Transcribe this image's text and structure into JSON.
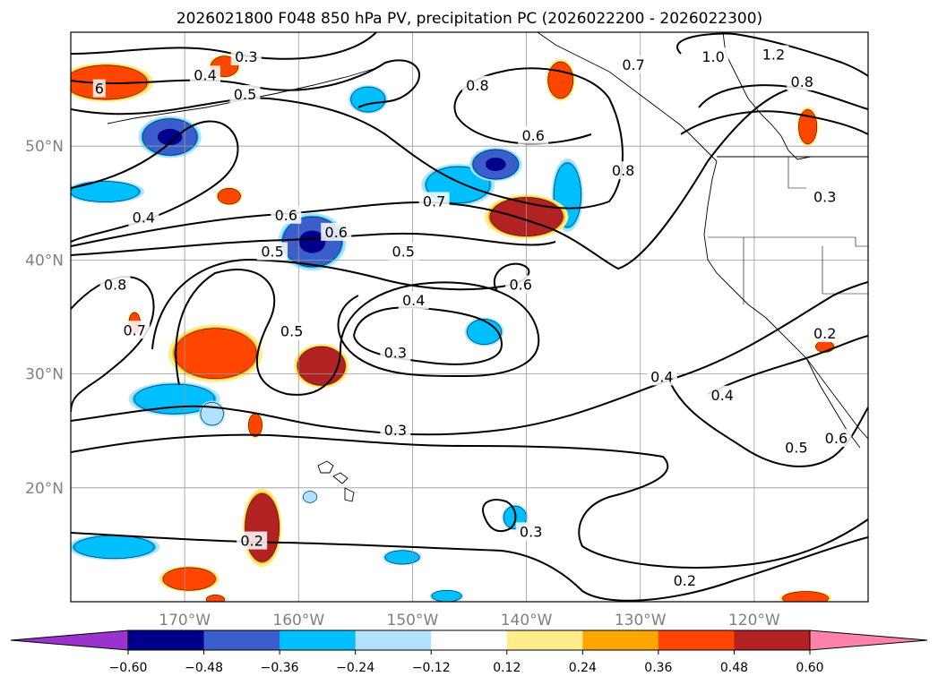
{
  "chart_data": {
    "type": "contour-map",
    "title": "2026021800 F048 850 hPa PV, precipitation PC (2026022200 - 2026022300)",
    "lon_range": [
      -180,
      -110
    ],
    "lat_range": [
      10,
      60
    ],
    "x_ticks": [
      {
        "lon": -170,
        "label": "170°W"
      },
      {
        "lon": -160,
        "label": "160°W"
      },
      {
        "lon": -150,
        "label": "150°W"
      },
      {
        "lon": -140,
        "label": "140°W"
      },
      {
        "lon": -130,
        "label": "130°W"
      },
      {
        "lon": -120,
        "label": "120°W"
      }
    ],
    "y_ticks": [
      {
        "lat": 20,
        "label": "20°N"
      },
      {
        "lat": 30,
        "label": "30°N"
      },
      {
        "lat": 40,
        "label": "40°N"
      },
      {
        "lat": 50,
        "label": "50°N"
      }
    ],
    "contour_labels": [
      {
        "text": "0.3",
        "lon": -164.6,
        "lat": 57.8
      },
      {
        "text": "0.4",
        "lon": -168.2,
        "lat": 56.2
      },
      {
        "text": "0.5",
        "lon": -164.7,
        "lat": 54.5
      },
      {
        "text": "0.8",
        "lon": -144.3,
        "lat": 55.3
      },
      {
        "text": "0.6",
        "lon": -139.4,
        "lat": 50.9
      },
      {
        "text": "0.8",
        "lon": -131.5,
        "lat": 47.8
      },
      {
        "text": "0.7",
        "lon": -130.6,
        "lat": 57.1
      },
      {
        "text": "1.0",
        "lon": -123.6,
        "lat": 57.8
      },
      {
        "text": "1.2",
        "lon": -118.3,
        "lat": 58.0
      },
      {
        "text": "0.8",
        "lon": -115.8,
        "lat": 55.6
      },
      {
        "text": "0.3",
        "lon": -113.8,
        "lat": 45.5
      },
      {
        "text": "0.4",
        "lon": -173.6,
        "lat": 43.7
      },
      {
        "text": "0.6",
        "lon": -161.1,
        "lat": 43.9
      },
      {
        "text": "0.7",
        "lon": -148.1,
        "lat": 45.1
      },
      {
        "text": "0.6",
        "lon": -156.7,
        "lat": 42.4
      },
      {
        "text": "0.5",
        "lon": -162.3,
        "lat": 40.7
      },
      {
        "text": "0.5",
        "lon": -150.8,
        "lat": 40.7
      },
      {
        "text": "0.8",
        "lon": -176.1,
        "lat": 37.8
      },
      {
        "text": "0.6",
        "lon": -140.5,
        "lat": 37.8
      },
      {
        "text": "0.4",
        "lon": -149.9,
        "lat": 36.4
      },
      {
        "text": "0.5",
        "lon": -160.6,
        "lat": 33.7
      },
      {
        "text": "0.7",
        "lon": -174.4,
        "lat": 33.8
      },
      {
        "text": "0.3",
        "lon": -151.5,
        "lat": 31.8
      },
      {
        "text": "0.4",
        "lon": -128.1,
        "lat": 29.7
      },
      {
        "text": "0.4",
        "lon": -122.8,
        "lat": 28.1
      },
      {
        "text": "0.3",
        "lon": -151.5,
        "lat": 25.0
      },
      {
        "text": "0.5",
        "lon": -116.3,
        "lat": 23.5
      },
      {
        "text": "0.6",
        "lon": -112.8,
        "lat": 24.3
      },
      {
        "text": "0.2",
        "lon": -113.8,
        "lat": 33.5
      },
      {
        "text": "0.3",
        "lon": -139.6,
        "lat": 16.1
      },
      {
        "text": "0.2",
        "lon": -164.1,
        "lat": 15.3
      },
      {
        "text": "0.2",
        "lon": -126.1,
        "lat": 11.8
      },
      {
        "text": "6",
        "lon": -177.5,
        "lat": 55.0
      }
    ],
    "colorbar": {
      "levels": [
        -0.6,
        -0.48,
        -0.36,
        -0.24,
        -0.12,
        0.12,
        0.24,
        0.36,
        0.48,
        0.6
      ],
      "tick_labels": [
        "−0.60",
        "−0.48",
        "−0.36",
        "−0.24",
        "−0.12",
        "0.12",
        "0.24",
        "0.36",
        "0.48",
        "0.60"
      ],
      "colors": [
        "#9a32cd",
        "#00008b",
        "#3a5fcd",
        "#00bfff",
        "#b2e2ff",
        "#ffffff",
        "#ffec8b",
        "#ffa500",
        "#ff4500",
        "#b22222",
        "#ff82ab"
      ],
      "extend": "both"
    },
    "precip_neg_areas": [
      {
        "lon": -171.3,
        "lat": 50.8,
        "rx": 2.4,
        "ry": 1.6,
        "level": -0.48
      },
      {
        "lon": -177.0,
        "lat": 46.0,
        "rx": 3.0,
        "ry": 0.9,
        "level": -0.36
      },
      {
        "lon": -158.8,
        "lat": 41.6,
        "rx": 2.6,
        "ry": 2.2,
        "level": -0.48
      },
      {
        "lon": -146.0,
        "lat": 46.6,
        "rx": 2.8,
        "ry": 1.6,
        "level": -0.36
      },
      {
        "lon": -142.7,
        "lat": 48.4,
        "rx": 2.0,
        "ry": 1.3,
        "level": -0.48
      },
      {
        "lon": -136.4,
        "lat": 45.7,
        "rx": 1.2,
        "ry": 2.8,
        "level": -0.36
      },
      {
        "lon": -153.9,
        "lat": 54.1,
        "rx": 1.5,
        "ry": 1.1,
        "level": -0.36
      },
      {
        "lon": -170.9,
        "lat": 27.8,
        "rx": 3.5,
        "ry": 1.3,
        "level": -0.36
      },
      {
        "lon": -143.7,
        "lat": 33.7,
        "rx": 1.5,
        "ry": 1.1,
        "level": -0.36
      },
      {
        "lon": -176.2,
        "lat": 14.8,
        "rx": 3.5,
        "ry": 1.0,
        "level": -0.36
      },
      {
        "lon": -141.0,
        "lat": 17.4,
        "rx": 1.0,
        "ry": 1.0,
        "level": -0.36
      },
      {
        "lon": -150.9,
        "lat": 13.9,
        "rx": 1.5,
        "ry": 0.6,
        "level": -0.36
      },
      {
        "lon": -147.0,
        "lat": 10.5,
        "rx": 1.3,
        "ry": 0.5,
        "level": -0.36
      },
      {
        "lon": -167.6,
        "lat": 26.5,
        "rx": 1.0,
        "ry": 1.0,
        "level": -0.24
      },
      {
        "lon": -159.0,
        "lat": 19.2,
        "rx": 0.6,
        "ry": 0.5,
        "level": -0.24
      }
    ],
    "precip_pos_areas": [
      {
        "lon": -176.9,
        "lat": 55.6,
        "rx": 3.6,
        "ry": 1.5,
        "level": 0.36
      },
      {
        "lon": -166.5,
        "lat": 57.0,
        "rx": 1.2,
        "ry": 0.9,
        "level": 0.36
      },
      {
        "lon": -140.0,
        "lat": 43.8,
        "rx": 3.2,
        "ry": 1.7,
        "level": 0.48
      },
      {
        "lon": -137.0,
        "lat": 55.8,
        "rx": 1.1,
        "ry": 1.6,
        "level": 0.36
      },
      {
        "lon": -115.3,
        "lat": 51.7,
        "rx": 0.8,
        "ry": 1.5,
        "level": 0.36
      },
      {
        "lon": -167.3,
        "lat": 31.8,
        "rx": 3.6,
        "ry": 2.2,
        "level": 0.36
      },
      {
        "lon": -158.0,
        "lat": 30.7,
        "rx": 2.1,
        "ry": 1.7,
        "level": 0.48
      },
      {
        "lon": -166.1,
        "lat": 45.6,
        "rx": 1.0,
        "ry": 0.7,
        "level": 0.36
      },
      {
        "lon": -174.4,
        "lat": 34.5,
        "rx": 0.5,
        "ry": 0.9,
        "level": 0.36
      },
      {
        "lon": -163.2,
        "lat": 16.5,
        "rx": 1.5,
        "ry": 3.0,
        "level": 0.48
      },
      {
        "lon": -169.6,
        "lat": 12.0,
        "rx": 2.3,
        "ry": 1.0,
        "level": 0.36
      },
      {
        "lon": -163.8,
        "lat": 25.5,
        "rx": 0.6,
        "ry": 1.0,
        "level": 0.36
      },
      {
        "lon": -115.5,
        "lat": 10.3,
        "rx": 2.0,
        "ry": 0.6,
        "level": 0.36
      },
      {
        "lon": -113.8,
        "lat": 32.4,
        "rx": 0.8,
        "ry": 0.5,
        "level": 0.36
      },
      {
        "lon": -167.3,
        "lat": 10.2,
        "rx": 0.8,
        "ry": 0.4,
        "level": 0.36
      }
    ]
  }
}
